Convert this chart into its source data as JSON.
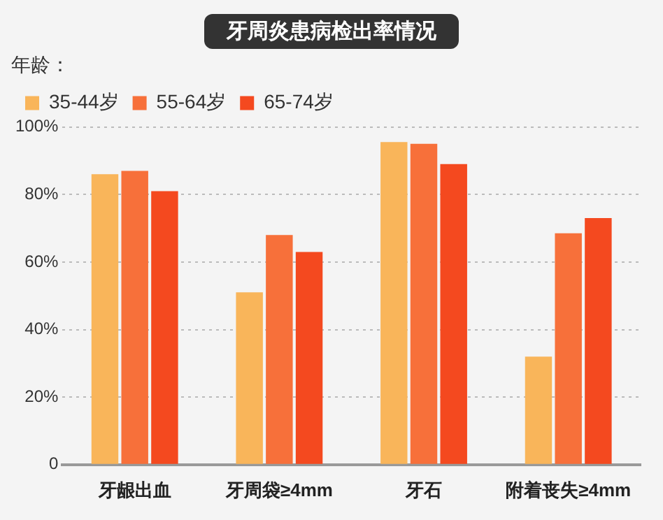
{
  "chart_data": {
    "type": "bar",
    "title": "牙周炎患病检出率情况",
    "legend_title": "年龄：",
    "categories": [
      "牙龈出血",
      "牙周袋≥4mm",
      "牙石",
      "附着丧失≥4mm"
    ],
    "series": [
      {
        "name": "35-44岁",
        "color": "#f9b55a",
        "values": [
          86,
          51,
          95.5,
          32
        ]
      },
      {
        "name": "55-64岁",
        "color": "#f7703a",
        "values": [
          87,
          68,
          95,
          68.5
        ]
      },
      {
        "name": "65-74岁",
        "color": "#f4491f",
        "values": [
          81,
          63,
          89,
          73
        ]
      }
    ],
    "ylim": [
      0,
      100
    ],
    "yticks": [
      0,
      {
        "value": 20,
        "label": "20%"
      },
      {
        "value": 40,
        "label": "40%"
      },
      {
        "value": 60,
        "label": "60%"
      },
      {
        "value": 80,
        "label": "80%"
      },
      {
        "value": 100,
        "label": "100%"
      }
    ],
    "grid": "y",
    "legend": "top left"
  }
}
